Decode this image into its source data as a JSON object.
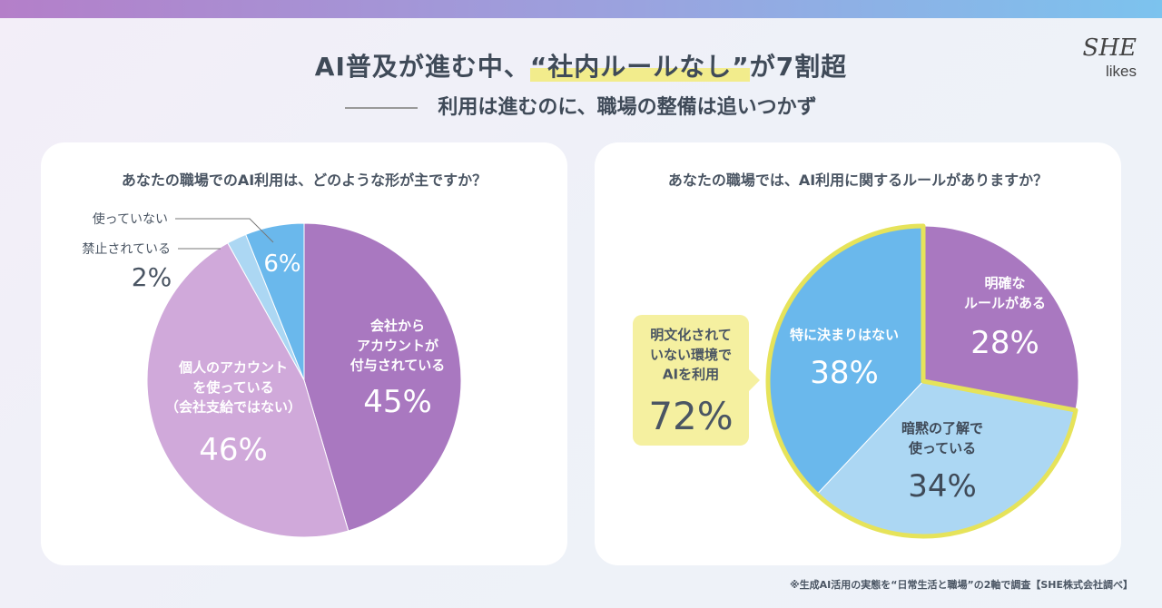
{
  "header": {
    "title_pre": "AI普及が進む中、",
    "title_hl": "“社内ルールなし”",
    "title_post": "が7割超",
    "subtitle": "利用は進むのに、職場の整備は追いつかず",
    "logo": "SHE likes"
  },
  "footer": "※生成AI活用の実態を“日常生活と職場”の2軸で調査【SHE株式会社調べ】",
  "colors": {
    "purple": "#a978c0",
    "light_purple": "#d0a9da",
    "light_blue": "#acd7f3",
    "blue": "#6ab8ec",
    "yellow": "#e6e35a",
    "callout": "#f5f0a0"
  },
  "chart_data": [
    {
      "type": "pie",
      "title": "あなたの職場でのAI利用は、どのような形が主ですか？",
      "slices": [
        {
          "label": "会社から\nアカウントが\n付与されている",
          "value": 45,
          "display": "45%",
          "color": "#a978c0"
        },
        {
          "label": "個人のアカウント\nを使っている\n（会社支給ではない）",
          "value": 46,
          "display": "46%",
          "color": "#d0a9da"
        },
        {
          "label": "禁止されている",
          "value": 2,
          "display": "2%",
          "color": "#acd7f3"
        },
        {
          "label": "使っていない",
          "value": 6,
          "display": "6%",
          "color": "#6ab8ec"
        }
      ]
    },
    {
      "type": "pie",
      "title": "あなたの職場では、AI利用に関するルールがありますか？",
      "slices": [
        {
          "label": "明確な\nルールがある",
          "value": 28,
          "display": "28%",
          "color": "#a978c0"
        },
        {
          "label": "暗黙の了解で\n使っている",
          "value": 34,
          "display": "34%",
          "color": "#acd7f3"
        },
        {
          "label": "特に決まりはない",
          "value": 38,
          "display": "38%",
          "color": "#6ab8ec"
        }
      ],
      "callout": {
        "label": "明文化されて\nいない環境で\nAIを利用",
        "display": "72%"
      }
    }
  ]
}
